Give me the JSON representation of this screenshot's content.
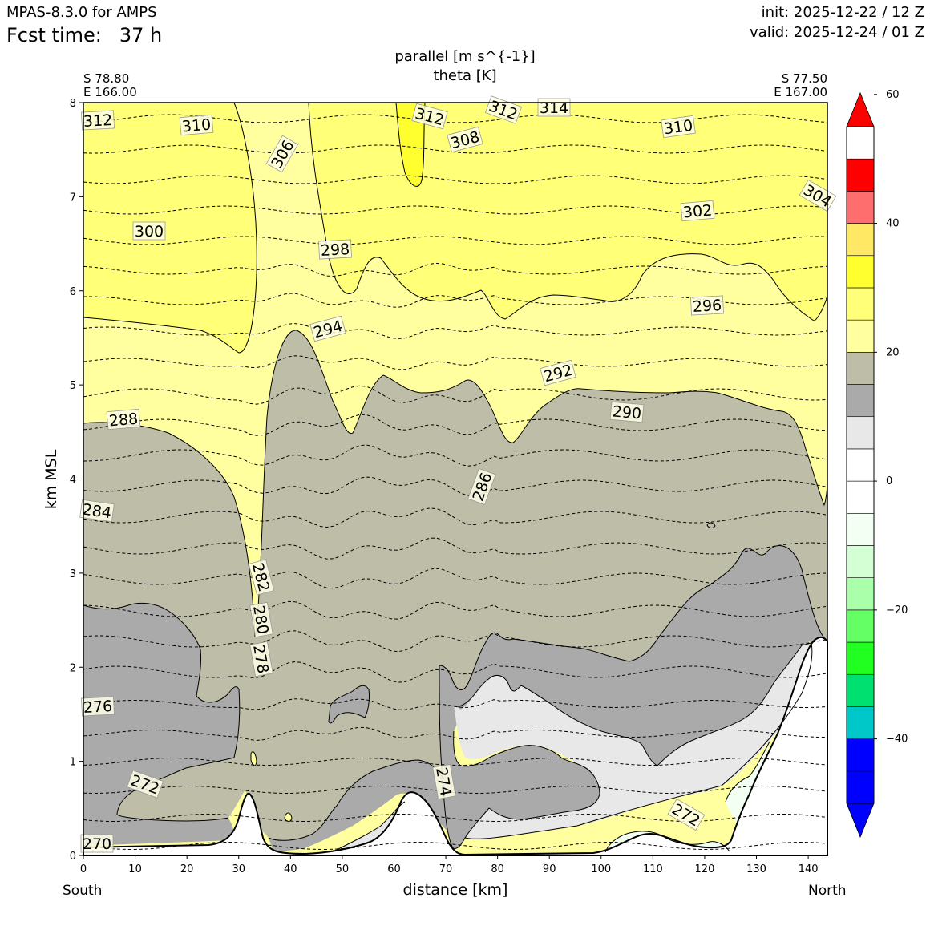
{
  "header": {
    "model": "MPAS-8.3.0 for AMPS",
    "fcst_label": "Fcst time:",
    "fcst_value": "37 h",
    "init": "init: 2025-12-22 / 12 Z",
    "valid": "valid: 2025-12-24 / 01 Z"
  },
  "chart_data": {
    "type": "contour cross-section",
    "title": "parallel [m s^{-1}]",
    "subtitle": "theta [K]",
    "xlabel": "distance [km]",
    "ylabel": "km MSL",
    "xlim": [
      0,
      143.7
    ],
    "ylim": [
      0,
      8
    ],
    "x_ticks": [
      0,
      10,
      20,
      30,
      40,
      50,
      60,
      70,
      80,
      90,
      100,
      110,
      120,
      130,
      140
    ],
    "y_ticks": [
      0,
      1,
      2,
      3,
      4,
      5,
      6,
      7,
      8
    ],
    "endpoints": {
      "left": {
        "lat": "S 78.80",
        "lon": "E 166.00",
        "side": "South"
      },
      "right": {
        "lat": "S 77.50",
        "lon": "E 167.00",
        "side": "North"
      }
    },
    "colorbar": {
      "ticks": [
        60,
        40,
        20,
        0,
        -20,
        -40
      ],
      "tick_labels": [
        "60",
        "40",
        "20",
        "0",
        "−20",
        "−40"
      ],
      "levels": [
        -50,
        -45,
        -40,
        -35,
        -30,
        -25,
        -20,
        -15,
        -10,
        -5,
        0,
        5,
        10,
        15,
        20,
        25,
        30,
        35,
        40,
        45,
        50,
        55
      ],
      "colors": [
        "#0000ff",
        "#0000ff",
        "#00c8c8",
        "#00e070",
        "#20ff20",
        "#64ff64",
        "#aaffaa",
        "#d4ffd4",
        "#f2fff2",
        "#ffffff",
        "#ffffff",
        "#e8e8e8",
        "#aaaaaa",
        "#bebea8",
        "#ffffa0",
        "#ffff78",
        "#ffff30",
        "#ffe864",
        "#ff6e6e",
        "#ff0000"
      ],
      "extend_min_color": "#0000ff",
      "extend_max_color": "#ff0000"
    },
    "fill_colors": {
      "wind_0_5": "#ffffff",
      "wind_5_10": "#e8e8e8",
      "wind_10_15": "#aaaaaa",
      "wind_15_20": "#bebea8",
      "wind_20_25": "#ffffa0",
      "wind_25_30": "#ffff78",
      "wind_30_35": "#ffff30",
      "wind_neg_0_5": "#f2fff2",
      "terrain": "#ffffff"
    },
    "theta_labels": [
      "312",
      "310",
      "306",
      "312",
      "312",
      "314",
      "308",
      "310",
      "304",
      "300",
      "298",
      "302",
      "296",
      "294",
      "292",
      "290",
      "288",
      "286",
      "284",
      "282",
      "280",
      "278",
      "276",
      "274",
      "272",
      "272",
      "270"
    ],
    "theta_levels_K": [
      270,
      272,
      274,
      276,
      278,
      280,
      282,
      284,
      286,
      288,
      290,
      292,
      294,
      296,
      298,
      300,
      302,
      304,
      306,
      308,
      310,
      312,
      314
    ]
  }
}
